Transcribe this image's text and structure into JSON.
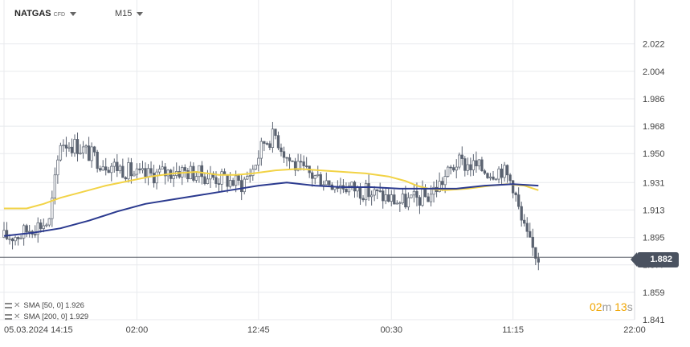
{
  "header": {
    "symbol": "NATGAS",
    "symbol_type": "CFD",
    "timeframe": "M15"
  },
  "indicators": [
    {
      "label": "SMA [50, 0]",
      "value": "1.926",
      "color": "#f2d346"
    },
    {
      "label": "SMA [200, 0]",
      "value": "1.929",
      "color": "#2b3a8f"
    }
  ],
  "countdown": {
    "minutes": "02",
    "m": "m",
    "seconds": "13",
    "s": "s"
  },
  "current_price": "1.882",
  "colors": {
    "candle": "#5a6270",
    "sma50": "#f2d346",
    "sma200": "#2b3a8f",
    "grid": "#e8eaed",
    "price_line": "#555a63"
  },
  "chart_data": {
    "type": "candlestick",
    "ylim": [
      1.841,
      2.035
    ],
    "y_ticks": [
      "2.022",
      "2.004",
      "1.986",
      "1.968",
      "1.950",
      "1.931",
      "1.913",
      "1.895",
      "1.877",
      "1.859",
      "1.841"
    ],
    "x_ticks": [
      {
        "label": "05.03.2024  14:15",
        "t": 0
      },
      {
        "label": "02:00",
        "t": 47
      },
      {
        "label": "12:45",
        "t": 90
      },
      {
        "label": "00:30",
        "t": 137
      },
      {
        "label": "11:15",
        "t": 180
      },
      {
        "label": "22:00",
        "t": 223
      }
    ],
    "close_profile": [
      [
        0,
        1.895
      ],
      [
        6,
        1.897
      ],
      [
        10,
        1.902
      ],
      [
        16,
        1.905
      ],
      [
        20,
        1.958
      ],
      [
        26,
        1.955
      ],
      [
        34,
        1.945
      ],
      [
        42,
        1.94
      ],
      [
        48,
        1.935
      ],
      [
        55,
        1.937
      ],
      [
        62,
        1.939
      ],
      [
        70,
        1.936
      ],
      [
        78,
        1.933
      ],
      [
        84,
        1.93
      ],
      [
        88,
        1.94
      ],
      [
        92,
        1.958
      ],
      [
        96,
        1.962
      ],
      [
        100,
        1.948
      ],
      [
        104,
        1.94
      ],
      [
        110,
        1.935
      ],
      [
        118,
        1.93
      ],
      [
        126,
        1.926
      ],
      [
        134,
        1.922
      ],
      [
        140,
        1.918
      ],
      [
        146,
        1.92
      ],
      [
        150,
        1.922
      ],
      [
        154,
        1.93
      ],
      [
        160,
        1.944
      ],
      [
        166,
        1.942
      ],
      [
        172,
        1.938
      ],
      [
        176,
        1.94
      ],
      [
        180,
        1.93
      ],
      [
        183,
        1.905
      ],
      [
        186,
        1.89
      ],
      [
        189,
        1.882
      ]
    ],
    "series": [
      {
        "name": "SMA [50, 0]",
        "points": [
          [
            0,
            1.914
          ],
          [
            8,
            1.914
          ],
          [
            14,
            1.917
          ],
          [
            20,
            1.921
          ],
          [
            28,
            1.925
          ],
          [
            36,
            1.929
          ],
          [
            44,
            1.932
          ],
          [
            52,
            1.935
          ],
          [
            60,
            1.937
          ],
          [
            68,
            1.938
          ],
          [
            76,
            1.936
          ],
          [
            82,
            1.936
          ],
          [
            88,
            1.937
          ],
          [
            96,
            1.939
          ],
          [
            104,
            1.94
          ],
          [
            112,
            1.939
          ],
          [
            120,
            1.938
          ],
          [
            128,
            1.937
          ],
          [
            136,
            1.935
          ],
          [
            142,
            1.932
          ],
          [
            146,
            1.929
          ],
          [
            150,
            1.927
          ],
          [
            156,
            1.926
          ],
          [
            164,
            1.927
          ],
          [
            172,
            1.929
          ],
          [
            178,
            1.93
          ],
          [
            184,
            1.929
          ],
          [
            189,
            1.926
          ]
        ]
      },
      {
        "name": "SMA [200, 0]",
        "points": [
          [
            0,
            1.896
          ],
          [
            10,
            1.898
          ],
          [
            20,
            1.901
          ],
          [
            30,
            1.906
          ],
          [
            40,
            1.912
          ],
          [
            50,
            1.917
          ],
          [
            60,
            1.92
          ],
          [
            70,
            1.923
          ],
          [
            80,
            1.926
          ],
          [
            90,
            1.929
          ],
          [
            100,
            1.931
          ],
          [
            110,
            1.929
          ],
          [
            120,
            1.928
          ],
          [
            130,
            1.928
          ],
          [
            140,
            1.927
          ],
          [
            150,
            1.927
          ],
          [
            160,
            1.927
          ],
          [
            170,
            1.929
          ],
          [
            180,
            1.93
          ],
          [
            189,
            1.929
          ]
        ]
      }
    ]
  }
}
